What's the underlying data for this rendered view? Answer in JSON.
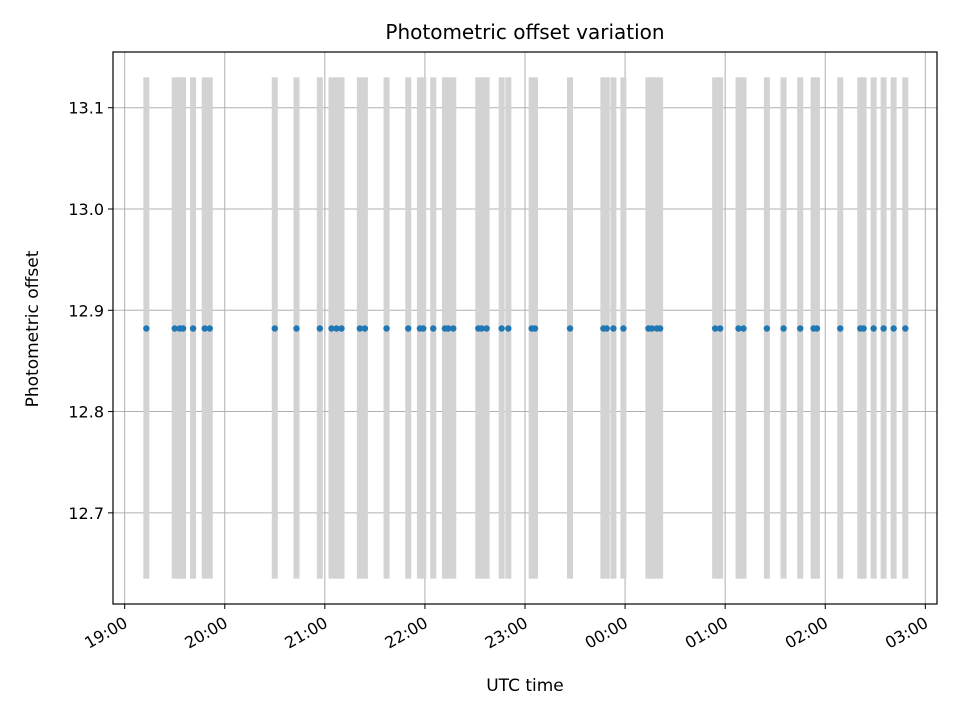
{
  "chart_data": {
    "type": "scatter",
    "title": "Photometric offset variation",
    "xlabel": "UTC time",
    "ylabel": "Photometric offset",
    "x_tick_labels": [
      "19:00",
      "20:00",
      "21:00",
      "22:00",
      "23:00",
      "00:00",
      "01:00",
      "02:00",
      "03:00"
    ],
    "y_tick_labels": [
      "12.7",
      "12.8",
      "12.9",
      "13.0",
      "13.1"
    ],
    "y_ticks": [
      12.7,
      12.8,
      12.9,
      13.0,
      13.1
    ],
    "xlim": [
      "2000-01-01T18:53",
      "2000-01-02T03:07"
    ],
    "ylim": [
      12.61,
      13.155
    ],
    "grid": true,
    "series": [
      {
        "marker_color": "#1f77b4",
        "x": [
          "2000-01-01T19:13",
          "2000-01-01T19:30",
          "2000-01-01T19:33",
          "2000-01-01T19:35",
          "2000-01-01T19:41",
          "2000-01-01T19:48",
          "2000-01-01T19:51",
          "2000-01-01T20:30",
          "2000-01-01T20:43",
          "2000-01-01T20:57",
          "2000-01-01T21:04",
          "2000-01-01T21:07",
          "2000-01-01T21:10",
          "2000-01-01T21:21",
          "2000-01-01T21:24",
          "2000-01-01T21:37",
          "2000-01-01T21:50",
          "2000-01-01T21:57",
          "2000-01-01T21:59",
          "2000-01-01T22:05",
          "2000-01-01T22:12",
          "2000-01-01T22:14",
          "2000-01-01T22:17",
          "2000-01-01T22:32",
          "2000-01-01T22:34",
          "2000-01-01T22:37",
          "2000-01-01T22:46",
          "2000-01-01T22:50",
          "2000-01-01T23:04",
          "2000-01-01T23:06",
          "2000-01-01T23:27",
          "2000-01-01T23:47",
          "2000-01-01T23:49",
          "2000-01-01T23:53",
          "2000-01-01T23:59",
          "2000-01-02T00:14",
          "2000-01-02T00:16",
          "2000-01-02T00:19",
          "2000-01-02T00:21",
          "2000-01-02T00:54",
          "2000-01-02T00:57",
          "2000-01-02T01:08",
          "2000-01-02T01:11",
          "2000-01-02T01:25",
          "2000-01-02T01:35",
          "2000-01-02T01:45",
          "2000-01-02T01:53",
          "2000-01-02T01:55",
          "2000-01-02T02:09",
          "2000-01-02T02:21",
          "2000-01-02T02:23",
          "2000-01-02T02:29",
          "2000-01-02T02:35",
          "2000-01-02T02:41",
          "2000-01-02T02:48"
        ],
        "y": [
          12.882,
          12.882,
          12.882,
          12.882,
          12.882,
          12.882,
          12.882,
          12.882,
          12.882,
          12.882,
          12.882,
          12.882,
          12.882,
          12.882,
          12.882,
          12.882,
          12.882,
          12.882,
          12.882,
          12.882,
          12.882,
          12.882,
          12.882,
          12.882,
          12.882,
          12.882,
          12.882,
          12.882,
          12.882,
          12.882,
          12.882,
          12.882,
          12.882,
          12.882,
          12.882,
          12.882,
          12.882,
          12.882,
          12.882,
          12.882,
          12.882,
          12.882,
          12.882,
          12.882,
          12.882,
          12.882,
          12.882,
          12.882,
          12.882,
          12.882,
          12.882,
          12.882,
          12.882,
          12.882,
          12.882
        ]
      }
    ],
    "vertical_bands": {
      "color": "#d3d3d3",
      "y_range": [
        12.635,
        13.13
      ],
      "x": [
        "2000-01-01T19:13",
        "2000-01-01T19:30",
        "2000-01-01T19:33",
        "2000-01-01T19:35",
        "2000-01-01T19:41",
        "2000-01-01T19:48",
        "2000-01-01T19:51",
        "2000-01-01T20:30",
        "2000-01-01T20:43",
        "2000-01-01T20:57",
        "2000-01-01T21:04",
        "2000-01-01T21:07",
        "2000-01-01T21:10",
        "2000-01-01T21:21",
        "2000-01-01T21:24",
        "2000-01-01T21:37",
        "2000-01-01T21:50",
        "2000-01-01T21:57",
        "2000-01-01T21:59",
        "2000-01-01T22:05",
        "2000-01-01T22:12",
        "2000-01-01T22:14",
        "2000-01-01T22:17",
        "2000-01-01T22:32",
        "2000-01-01T22:34",
        "2000-01-01T22:37",
        "2000-01-01T22:46",
        "2000-01-01T22:50",
        "2000-01-01T23:04",
        "2000-01-01T23:06",
        "2000-01-01T23:27",
        "2000-01-01T23:47",
        "2000-01-01T23:49",
        "2000-01-01T23:53",
        "2000-01-01T23:59",
        "2000-01-02T00:14",
        "2000-01-02T00:16",
        "2000-01-02T00:19",
        "2000-01-02T00:21",
        "2000-01-02T00:54",
        "2000-01-02T00:57",
        "2000-01-02T01:08",
        "2000-01-02T01:11",
        "2000-01-02T01:25",
        "2000-01-02T01:35",
        "2000-01-02T01:45",
        "2000-01-02T01:53",
        "2000-01-02T01:55",
        "2000-01-02T02:09",
        "2000-01-02T02:21",
        "2000-01-02T02:23",
        "2000-01-02T02:29",
        "2000-01-02T02:35",
        "2000-01-02T02:41",
        "2000-01-02T02:48"
      ]
    }
  }
}
